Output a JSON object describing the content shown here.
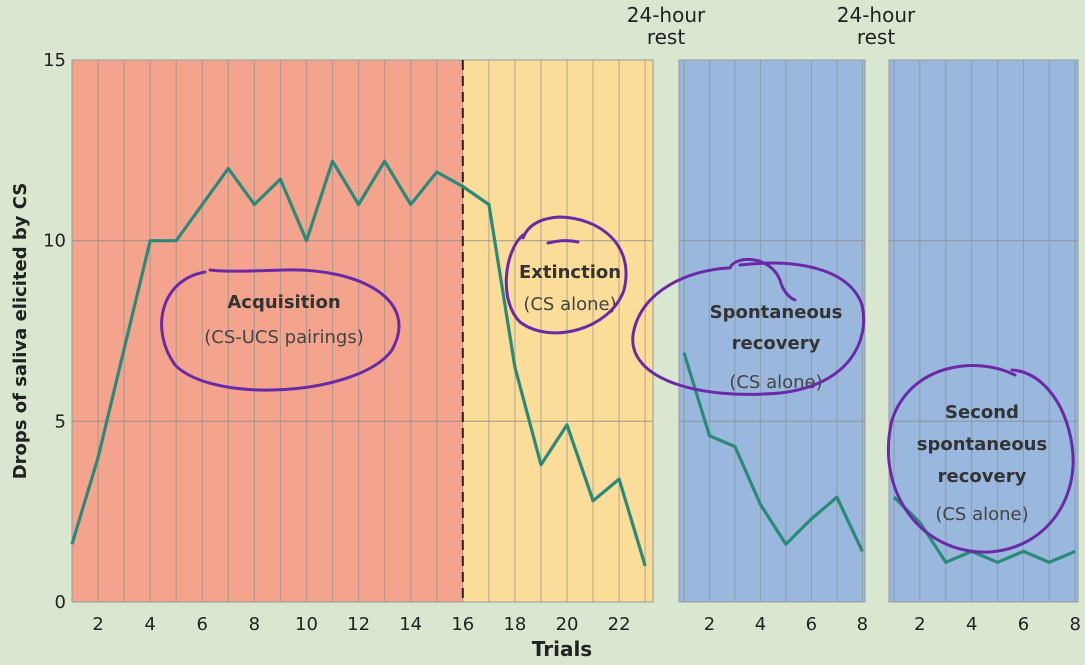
{
  "chart_data": {
    "type": "line",
    "ylabel": "Drops of saliva elicited by CS",
    "xlabel": "Trials",
    "ylim": [
      0,
      15
    ],
    "y_ticks": [
      "0",
      "5",
      "10",
      "15"
    ],
    "grid": true,
    "colors": {
      "line": "#2a8a7a",
      "acquisition": "#f4a48c",
      "extinction": "#fbdc98",
      "recovery": "#9ab8de",
      "background": "#d9e6d0",
      "circle": "#6a2aa8"
    },
    "panels": [
      {
        "x_ticks": [
          "2",
          "4",
          "6",
          "8",
          "10",
          "12",
          "14",
          "16",
          "18",
          "20",
          "22"
        ],
        "regions": [
          {
            "label": "Acquisition",
            "sublabel": "(CS-UCS pairings)",
            "trials": [
              1,
              16
            ]
          },
          {
            "label": "Extinction",
            "sublabel": "(CS alone)",
            "trials": [
              16,
              23
            ]
          }
        ],
        "series": {
          "x": [
            1,
            2,
            3,
            4,
            5,
            6,
            7,
            8,
            9,
            10,
            11,
            12,
            13,
            14,
            15,
            16,
            17,
            18,
            19,
            20,
            21,
            22,
            23
          ],
          "y": [
            1.6,
            4,
            7,
            10,
            10,
            11,
            12,
            11,
            11.7,
            10,
            12.2,
            11,
            12.2,
            11,
            11.9,
            11.5,
            11,
            6.5,
            3.8,
            4.9,
            2.8,
            3.4,
            1
          ]
        }
      },
      {
        "header": "24-hour\nrest",
        "x_ticks": [
          "2",
          "4",
          "6",
          "8"
        ],
        "label": "Spontaneous\nrecovery",
        "sublabel": "(CS alone)",
        "series": {
          "x": [
            1,
            2,
            3,
            4,
            5,
            6,
            7,
            8
          ],
          "y": [
            6.9,
            4.6,
            4.3,
            2.7,
            1.6,
            2.3,
            2.9,
            1.4
          ]
        }
      },
      {
        "header": "24-hour\nrest",
        "x_ticks": [
          "2",
          "4",
          "6",
          "8"
        ],
        "label": "Second\nspontaneous\nrecovery",
        "sublabel": "(CS alone)",
        "series": {
          "x": [
            1,
            2,
            3,
            4,
            5,
            6,
            7,
            8
          ],
          "y": [
            2.9,
            2.2,
            1.1,
            1.4,
            1.1,
            1.4,
            1.1,
            1.4
          ]
        }
      }
    ]
  }
}
